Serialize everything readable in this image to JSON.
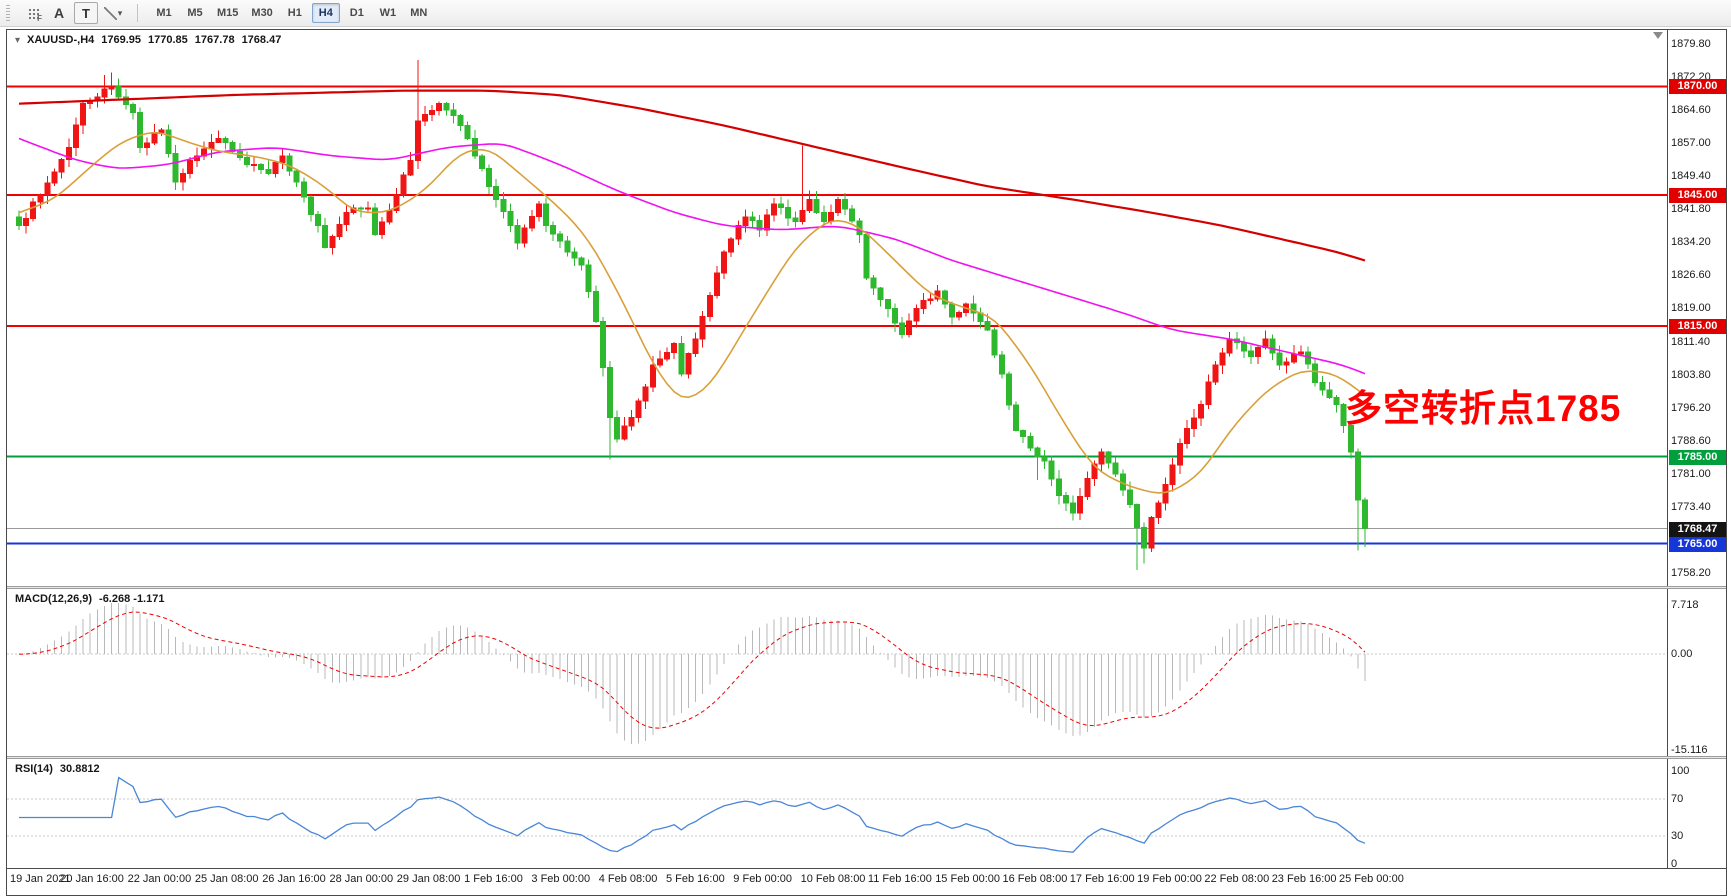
{
  "app": {
    "name": "MetaTrader chart window"
  },
  "toolbar": {
    "tools": {
      "grid_sub": "F",
      "label_a": "A",
      "text_t": "T"
    },
    "timeframes": [
      {
        "label": "M1",
        "active": false
      },
      {
        "label": "M5",
        "active": false
      },
      {
        "label": "M15",
        "active": false
      },
      {
        "label": "M30",
        "active": false
      },
      {
        "label": "H1",
        "active": false
      },
      {
        "label": "H4",
        "active": true
      },
      {
        "label": "D1",
        "active": false
      },
      {
        "label": "W1",
        "active": false
      },
      {
        "label": "MN",
        "active": false
      }
    ]
  },
  "chart": {
    "symbol_period": "XAUUSD-,H4",
    "ohlc": {
      "open": "1769.95",
      "high": "1770.85",
      "low": "1767.78",
      "close": "1768.47"
    },
    "annotation": {
      "text": "多空转折点1785",
      "color": "#fe0000"
    }
  },
  "indicators": {
    "macd": {
      "title": "MACD(12,26,9)",
      "values": "-6.268 -1.171",
      "axis_labels": [
        {
          "text": "7.718",
          "value": 7.718
        },
        {
          "text": "0.00",
          "value": 0
        },
        {
          "text": "-15.116",
          "value": -15.116
        }
      ]
    },
    "rsi": {
      "title": "RSI(14)",
      "value": "30.8812",
      "axis_labels": [
        {
          "text": "100",
          "value": 100
        },
        {
          "text": "70",
          "value": 70
        },
        {
          "text": "30",
          "value": 30
        },
        {
          "text": "0",
          "value": 0
        }
      ],
      "levels": [
        70,
        30
      ]
    }
  },
  "chart_data": {
    "type": "candlestick",
    "symbol": "XAUUSD",
    "timeframe": "H4",
    "title": "XAUUSD-,H4 1769.95 1770.85 1767.78 1768.47",
    "y_axis": {
      "max": 1879.8,
      "min": 1758.2,
      "step": 7.6,
      "labels": [
        "1879.80",
        "1872.20",
        "1864.60",
        "1857.00",
        "1849.40",
        "1841.80",
        "1834.20",
        "1826.60",
        "1819.00",
        "1811.40",
        "1803.80",
        "1796.20",
        "1788.60",
        "1781.00",
        "1773.40",
        "1765.80",
        "1758.20"
      ]
    },
    "x_axis": {
      "labels": [
        "19 Jan 2021",
        "20 Jan 16:00",
        "22 Jan 00:00",
        "25 Jan 08:00",
        "26 Jan 16:00",
        "28 Jan 00:00",
        "29 Jan 08:00",
        "1 Feb 16:00",
        "3 Feb 00:00",
        "4 Feb 08:00",
        "5 Feb 16:00",
        "9 Feb 00:00",
        "10 Feb 08:00",
        "11 Feb 16:00",
        "15 Feb 00:00",
        "16 Feb 08:00",
        "17 Feb 16:00",
        "19 Feb 00:00",
        "22 Feb 08:00",
        "23 Feb 16:00",
        "25 Feb 00:00"
      ]
    },
    "candles": {
      "count": 190,
      "seed": 7,
      "noise": 1.5,
      "close_path": [
        [
          0,
          1838
        ],
        [
          3,
          1845
        ],
        [
          7,
          1856
        ],
        [
          9,
          1866
        ],
        [
          13,
          1870
        ],
        [
          16,
          1864
        ],
        [
          17,
          1856
        ],
        [
          20,
          1860
        ],
        [
          22,
          1848
        ],
        [
          24,
          1853
        ],
        [
          28,
          1858
        ],
        [
          32,
          1852
        ],
        [
          35,
          1850
        ],
        [
          37,
          1854
        ],
        [
          39,
          1848
        ],
        [
          42,
          1838
        ],
        [
          43,
          1833
        ],
        [
          46,
          1841
        ],
        [
          49,
          1842
        ],
        [
          50,
          1836
        ],
        [
          53,
          1845
        ],
        [
          55,
          1853
        ],
        [
          56,
          1862
        ],
        [
          59,
          1866
        ],
        [
          62,
          1861
        ],
        [
          64,
          1854
        ],
        [
          66,
          1847
        ],
        [
          69,
          1838
        ],
        [
          70,
          1834
        ],
        [
          73,
          1843
        ],
        [
          74,
          1838
        ],
        [
          77,
          1832
        ],
        [
          79,
          1829
        ],
        [
          81,
          1816
        ],
        [
          83,
          1794
        ],
        [
          84,
          1789
        ],
        [
          86,
          1794
        ],
        [
          88,
          1801
        ],
        [
          89,
          1806
        ],
        [
          92,
          1811
        ],
        [
          93,
          1804
        ],
        [
          95,
          1812
        ],
        [
          97,
          1822
        ],
        [
          99,
          1832
        ],
        [
          102,
          1840
        ],
        [
          104,
          1837
        ],
        [
          106,
          1843
        ],
        [
          109,
          1839
        ],
        [
          111,
          1844
        ],
        [
          113,
          1839
        ],
        [
          115,
          1844
        ],
        [
          118,
          1836
        ],
        [
          119,
          1826
        ],
        [
          121,
          1821
        ],
        [
          124,
          1813
        ],
        [
          126,
          1819
        ],
        [
          129,
          1823
        ],
        [
          131,
          1817
        ],
        [
          133,
          1820
        ],
        [
          136,
          1814
        ],
        [
          138,
          1804
        ],
        [
          140,
          1791
        ],
        [
          142,
          1787
        ],
        [
          144,
          1784
        ],
        [
          146,
          1776
        ],
        [
          148,
          1772
        ],
        [
          150,
          1780
        ],
        [
          152,
          1786
        ],
        [
          154,
          1781
        ],
        [
          156,
          1774
        ],
        [
          158,
          1764
        ],
        [
          159,
          1771
        ],
        [
          162,
          1783
        ],
        [
          163,
          1788
        ],
        [
          166,
          1797
        ],
        [
          168,
          1806
        ],
        [
          170,
          1812
        ],
        [
          173,
          1808
        ],
        [
          175,
          1812
        ],
        [
          177,
          1806
        ],
        [
          180,
          1809
        ],
        [
          182,
          1802
        ],
        [
          185,
          1797
        ],
        [
          187,
          1786
        ],
        [
          188,
          1775
        ],
        [
          189,
          1768.47
        ]
      ],
      "wick_overrides": [
        {
          "i": 12,
          "high": 1872.6
        },
        {
          "i": 13,
          "high": 1873.2
        },
        {
          "i": 14,
          "high": 1871.8
        },
        {
          "i": 56,
          "high": 1876.0
        },
        {
          "i": 110,
          "high": 1856.4
        },
        {
          "i": 83,
          "low": 1784.3
        },
        {
          "i": 143,
          "low": 1779.6
        },
        {
          "i": 157,
          "low": 1758.9
        },
        {
          "i": 158,
          "low": 1760.5
        },
        {
          "i": 188,
          "low": 1763.4
        },
        {
          "i": 189,
          "low": 1764.2
        }
      ]
    },
    "hlines": [
      {
        "price": 1870.0,
        "label": "1870.00",
        "color": "#f00000",
        "tag_bg": "#e00000",
        "width": 2
      },
      {
        "price": 1845.0,
        "label": "1845.00",
        "color": "#f00000",
        "tag_bg": "#e00000",
        "width": 2
      },
      {
        "price": 1815.0,
        "label": "1815.00",
        "color": "#f00000",
        "tag_bg": "#e00000",
        "width": 2
      },
      {
        "price": 1785.0,
        "label": "1785.00",
        "color": "#009e3c",
        "tag_bg": "#009e3c",
        "width": 2
      },
      {
        "price": 1765.0,
        "label": "1765.00",
        "color": "#1536d8",
        "tag_bg": "#1536d8",
        "width": 2
      }
    ],
    "current_price": {
      "value": 1768.47,
      "label": "1768.47",
      "line_color": "#9a9a9a",
      "tag_bg": "#141414"
    },
    "moving_averages": [
      {
        "name": "slow-red-ma",
        "color": "#d40000",
        "width": 2.2,
        "path": [
          [
            0,
            1866
          ],
          [
            30,
            1868
          ],
          [
            54,
            1869
          ],
          [
            66,
            1869
          ],
          [
            76,
            1868
          ],
          [
            87,
            1865
          ],
          [
            99,
            1861
          ],
          [
            112,
            1856
          ],
          [
            125,
            1851
          ],
          [
            136,
            1847
          ],
          [
            148,
            1844
          ],
          [
            159,
            1841
          ],
          [
            169,
            1838
          ],
          [
            177,
            1835
          ],
          [
            185,
            1832
          ],
          [
            189,
            1830
          ]
        ]
      },
      {
        "name": "mid-magenta-ma",
        "color": "#f012f0",
        "width": 1.6,
        "path": [
          [
            0,
            1858
          ],
          [
            8,
            1853
          ],
          [
            14,
            1851
          ],
          [
            21,
            1852
          ],
          [
            28,
            1855
          ],
          [
            36,
            1856
          ],
          [
            44,
            1854
          ],
          [
            52,
            1853
          ],
          [
            60,
            1856
          ],
          [
            68,
            1857
          ],
          [
            76,
            1852
          ],
          [
            84,
            1846
          ],
          [
            92,
            1841
          ],
          [
            99,
            1838
          ],
          [
            107,
            1837
          ],
          [
            115,
            1838
          ],
          [
            123,
            1835
          ],
          [
            131,
            1830
          ],
          [
            139,
            1826
          ],
          [
            147,
            1822
          ],
          [
            155,
            1818
          ],
          [
            162,
            1814
          ],
          [
            170,
            1812
          ],
          [
            178,
            1809
          ],
          [
            186,
            1806
          ],
          [
            189,
            1804
          ]
        ]
      },
      {
        "name": "fast-orange-ma",
        "color": "#d9a03a",
        "width": 1.6,
        "path": [
          [
            0,
            1841
          ],
          [
            5,
            1844
          ],
          [
            9,
            1850
          ],
          [
            14,
            1857
          ],
          [
            19,
            1860
          ],
          [
            24,
            1857
          ],
          [
            28,
            1855
          ],
          [
            33,
            1854
          ],
          [
            38,
            1852
          ],
          [
            43,
            1847
          ],
          [
            47,
            1841
          ],
          [
            52,
            1841
          ],
          [
            57,
            1846
          ],
          [
            62,
            1855
          ],
          [
            66,
            1856
          ],
          [
            71,
            1849
          ],
          [
            76,
            1842
          ],
          [
            80,
            1835
          ],
          [
            85,
            1820
          ],
          [
            89,
            1806
          ],
          [
            93,
            1797
          ],
          [
            97,
            1801
          ],
          [
            104,
            1820
          ],
          [
            109,
            1833
          ],
          [
            114,
            1840
          ],
          [
            118,
            1838
          ],
          [
            123,
            1830
          ],
          [
            128,
            1822
          ],
          [
            133,
            1819
          ],
          [
            137,
            1817
          ],
          [
            142,
            1806
          ],
          [
            147,
            1792
          ],
          [
            151,
            1782
          ],
          [
            156,
            1778
          ],
          [
            161,
            1776
          ],
          [
            166,
            1781
          ],
          [
            170,
            1791
          ],
          [
            175,
            1800
          ],
          [
            180,
            1805
          ],
          [
            185,
            1804
          ],
          [
            189,
            1799
          ]
        ]
      }
    ],
    "colors": {
      "up": "#f01414",
      "down": "#2eb82e",
      "macd_hist": "#b9b9b9",
      "macd_signal": "#f00000",
      "rsi_line": "#4a86d8"
    }
  }
}
